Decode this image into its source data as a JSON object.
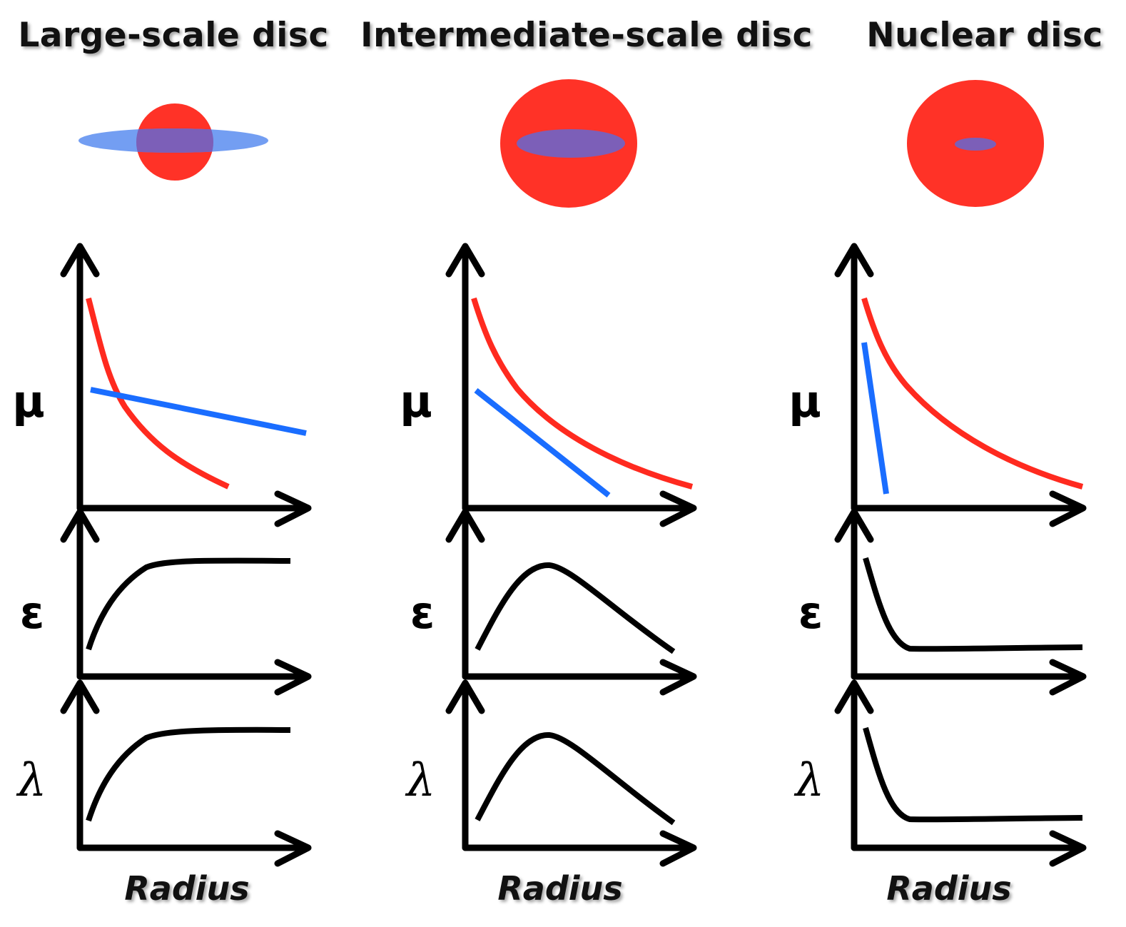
{
  "panels": [
    {
      "title": "Large-scale disc",
      "symbols": {
        "mu": "μ",
        "epsilon": "ε",
        "lambda": "λ"
      },
      "x_label": "Radius"
    },
    {
      "title": "Intermediate-scale disc",
      "symbols": {
        "mu": "μ",
        "epsilon": "ε",
        "lambda": "λ"
      },
      "x_label": "Radius"
    },
    {
      "title": "Nuclear disc",
      "symbols": {
        "mu": "μ",
        "epsilon": "ε",
        "lambda": "λ"
      },
      "x_label": "Radius"
    }
  ],
  "colors": {
    "bulge": "#ff3227",
    "disc": "#5a8df0",
    "disc_overlap": "#7c5fb8",
    "mu_bulge_line": "#ff2a1f",
    "mu_disc_line": "#1a6dff",
    "profile_line": "#000000",
    "axis": "#000000"
  }
}
